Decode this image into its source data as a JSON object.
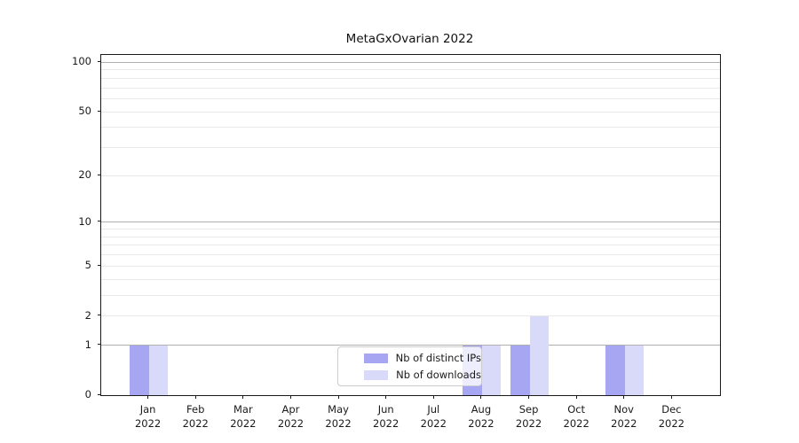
{
  "chart_data": {
    "type": "bar",
    "title": "MetaGxOvarian 2022",
    "categories": [
      "Jan",
      "Feb",
      "Mar",
      "Apr",
      "May",
      "Jun",
      "Jul",
      "Aug",
      "Sep",
      "Oct",
      "Nov",
      "Dec"
    ],
    "category_year": "2022",
    "series": [
      {
        "name": "Nb of distinct IPs",
        "color": "#a6a6f2",
        "values": [
          1,
          0,
          0,
          0,
          0,
          0,
          0,
          1,
          1,
          0,
          1,
          0
        ]
      },
      {
        "name": "Nb of downloads",
        "color": "#d9d9f9",
        "values": [
          1,
          0,
          0,
          0,
          0,
          0,
          0,
          1,
          2,
          0,
          1,
          0
        ]
      }
    ],
    "yscale": "log1p",
    "yticks": [
      0,
      1,
      2,
      5,
      10,
      20,
      50,
      100
    ],
    "major_grid_values": [
      1,
      10,
      100
    ],
    "minor_grid_values": [
      2,
      3,
      4,
      5,
      6,
      7,
      8,
      9,
      20,
      30,
      40,
      50,
      60,
      70,
      80,
      90
    ],
    "ylim": [
      0,
      111
    ],
    "xlabel": "",
    "ylabel": "",
    "grid": "horizontal major+minor",
    "legend_position": "lower center inside plot",
    "colors": {
      "major_grid": "#b0b0b0",
      "minor_grid": "#e9e9e9",
      "spine": "#1a1a1a",
      "text": "#1a1a1a",
      "background": "#ffffff"
    }
  }
}
